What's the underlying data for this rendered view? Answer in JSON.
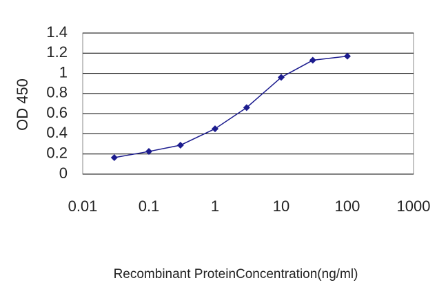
{
  "chart_data": {
    "type": "line",
    "x_label": "Recombinant ProteinConcentration(ng/ml)",
    "y_label": "OD 450",
    "x": [
      0.03,
      0.1,
      0.3,
      1,
      3,
      10,
      30,
      100
    ],
    "values": [
      0.164,
      0.225,
      0.287,
      0.45,
      0.66,
      0.96,
      1.13,
      1.17
    ],
    "color": "#1c1c8e",
    "xscale": "log",
    "xlim": [
      0.01,
      1000
    ],
    "xticks": [
      0.01,
      0.1,
      1,
      10,
      100,
      1000
    ],
    "ylim": [
      0,
      1.4
    ],
    "yticks": [
      0,
      0.2,
      0.4,
      0.6,
      0.8,
      1,
      1.2,
      1.4
    ],
    "grid": true
  }
}
